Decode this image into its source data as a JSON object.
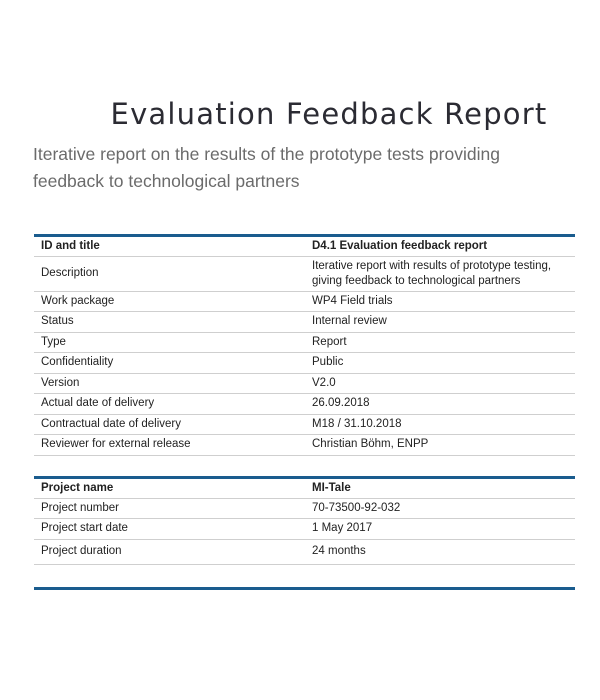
{
  "document": {
    "title": "Evaluation Feedback Report",
    "subtitle": "Iterative report on the results of the prototype tests providing feedback to technological partners"
  },
  "deliverable_table": {
    "rows": [
      {
        "key": "ID and title",
        "value": "D4.1 Evaluation feedback report"
      },
      {
        "key": "Description",
        "value": "Iterative report with results of prototype testing, giving feedback to technological partners"
      },
      {
        "key": "Work package",
        "value": "WP4 Field trials"
      },
      {
        "key": "Status",
        "value": "Internal review"
      },
      {
        "key": "Type",
        "value": "Report"
      },
      {
        "key": "Confidentiality",
        "value": "Public"
      },
      {
        "key": "Version",
        "value": "V2.0"
      },
      {
        "key": "Actual date of delivery",
        "value": "26.09.2018"
      },
      {
        "key": "Contractual date of delivery",
        "value": "M18 / 31.10.2018"
      },
      {
        "key": "Reviewer for external release",
        "value": "Christian Böhm, ENPP"
      }
    ]
  },
  "project_table": {
    "rows": [
      {
        "key": "Project name",
        "value": "MI-Tale"
      },
      {
        "key": "Project number",
        "value": "70-73500-92-032"
      },
      {
        "key": "Project start date",
        "value": "1 May 2017"
      },
      {
        "key": "Project duration",
        "value": "24 months"
      }
    ]
  },
  "colors": {
    "accent_rule": "#1a5c8e",
    "row_divider": "#cfcfcf",
    "title_text": "#2b2b33",
    "subtitle_text": "#6b6b6b"
  }
}
